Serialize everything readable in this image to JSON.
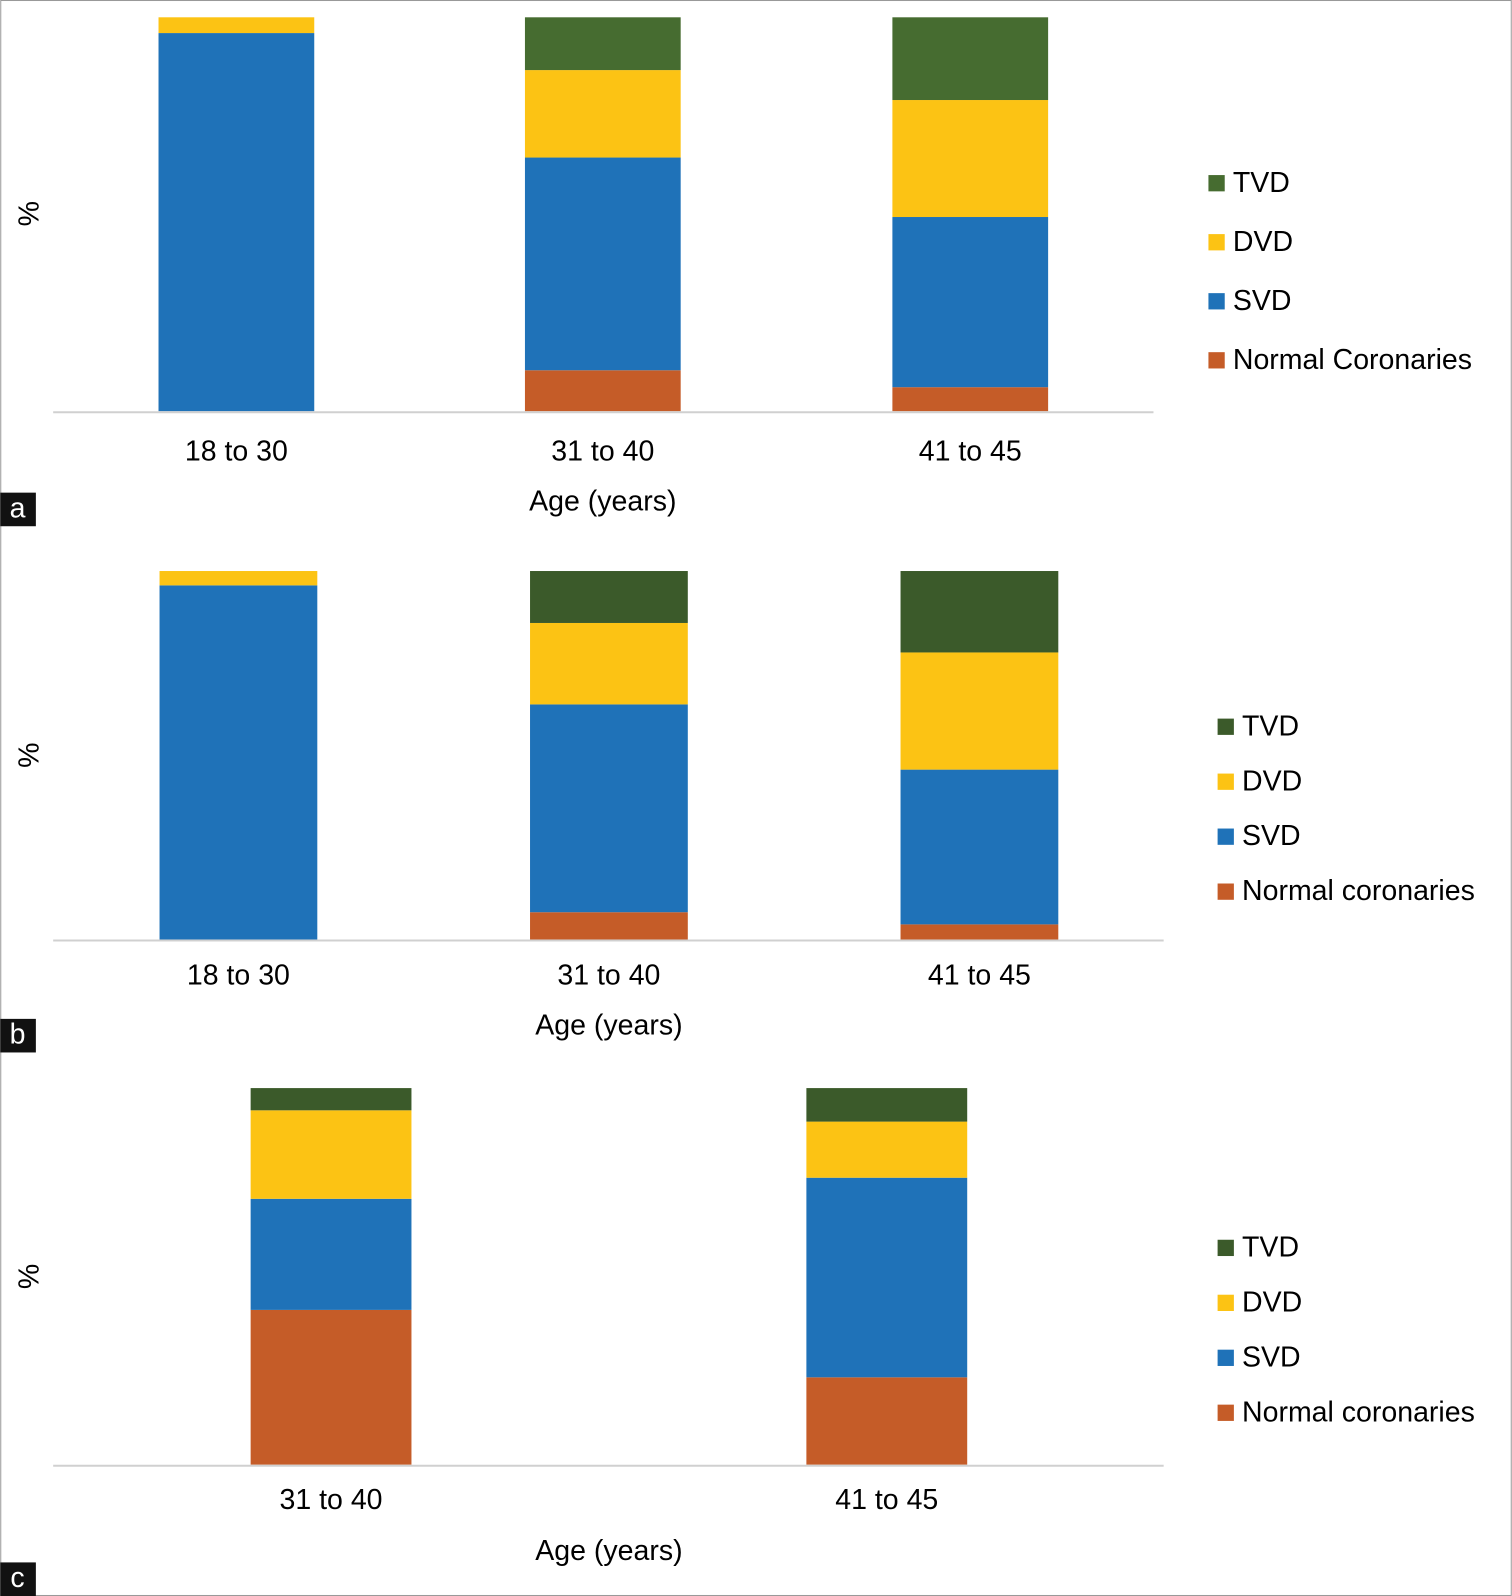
{
  "chart_data": [
    {
      "type": "bar",
      "stacked": true,
      "label": "a",
      "ylabel": "%",
      "xlabel": "Age (years)",
      "categories": [
        "18 to 30",
        "31 to 40",
        "41 to 45"
      ],
      "ylim": [
        0,
        100
      ],
      "series": [
        {
          "name": "Normal Coronaries",
          "color": "#c55c28",
          "values": [
            0,
            10.4,
            6.1
          ]
        },
        {
          "name": "SVD",
          "color": "#1f72b8",
          "values": [
            96,
            54,
            43.2
          ]
        },
        {
          "name": "DVD",
          "color": "#fcc314",
          "values": [
            4,
            22.2,
            29.7
          ]
        },
        {
          "name": "TVD",
          "color": "#466c30",
          "values": [
            0,
            13.4,
            21
          ]
        }
      ]
    },
    {
      "type": "bar",
      "stacked": true,
      "label": "b",
      "ylabel": "%",
      "xlabel": "Age (years)",
      "categories": [
        "18 to 30",
        "31 to 40",
        "41 to 45"
      ],
      "ylim": [
        0,
        100
      ],
      "series": [
        {
          "name": "Normal coronaries",
          "color": "#c55c28",
          "values": [
            0,
            7.4,
            4.1
          ]
        },
        {
          "name": "SVD",
          "color": "#1f72b8",
          "values": [
            96.1,
            56.4,
            42
          ]
        },
        {
          "name": "DVD",
          "color": "#fcc314",
          "values": [
            3.9,
            22.1,
            31.8
          ]
        },
        {
          "name": "TVD",
          "color": "#3b5a2a",
          "values": [
            0,
            14.1,
            22.1
          ]
        }
      ]
    },
    {
      "type": "bar",
      "stacked": true,
      "label": "c",
      "ylabel": "%",
      "xlabel": "Age (years)",
      "categories": [
        "31 to 40",
        "41 to 45"
      ],
      "ylim": [
        0,
        100
      ],
      "series": [
        {
          "name": "Normal coronaries",
          "color": "#c55c28",
          "values": [
            41.1,
            23.2
          ]
        },
        {
          "name": "SVD",
          "color": "#1f72b8",
          "values": [
            29.5,
            53
          ]
        },
        {
          "name": "DVD",
          "color": "#fcc314",
          "values": [
            23.5,
            14.9
          ]
        },
        {
          "name": "TVD",
          "color": "#3b5a2a",
          "values": [
            5.9,
            8.9
          ]
        }
      ]
    }
  ]
}
